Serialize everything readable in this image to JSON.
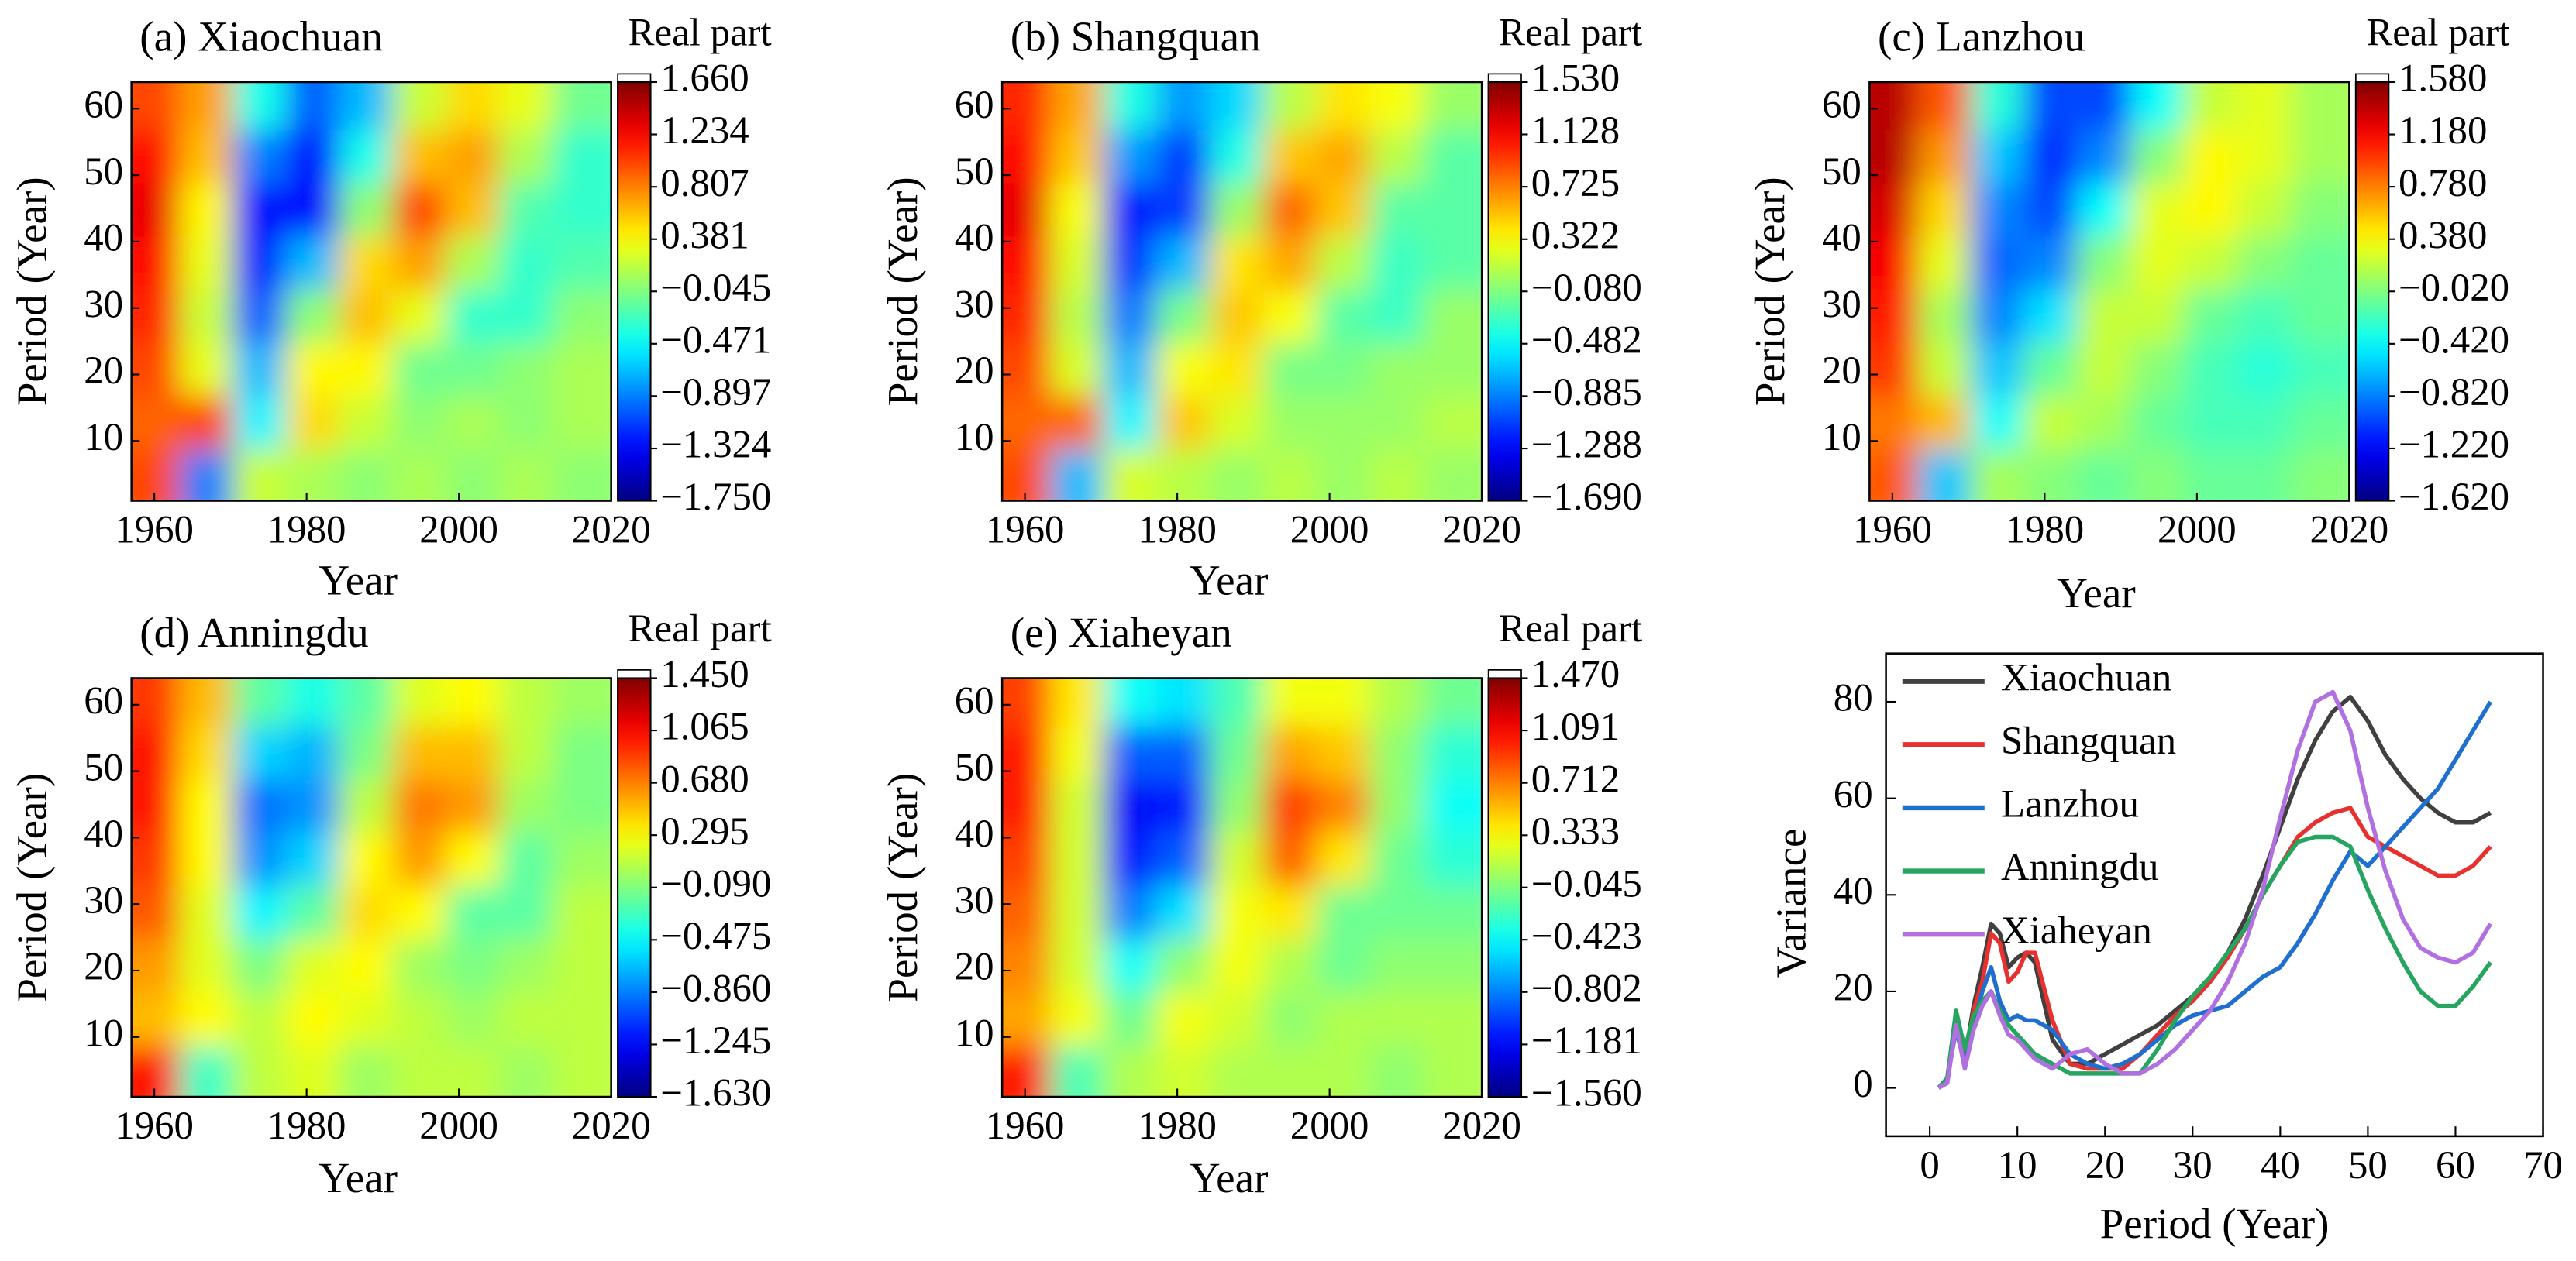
{
  "chart_data": [
    {
      "type": "heatmap",
      "title": "(a) Xiaochuan",
      "colorbar_label": "Real part",
      "xlabel": "Year",
      "ylabel": "Period (Year)",
      "colormap": "jet",
      "x": [
        1960,
        1967,
        1974,
        1981,
        1988,
        1995,
        2002,
        2009,
        2016
      ],
      "y": [
        5,
        13,
        21,
        29,
        37,
        45,
        53,
        61
      ],
      "z": [
        [
          1.0,
          -0.9,
          0.2,
          0.1,
          0.0,
          0.1,
          0.0,
          0.1,
          0.0
        ],
        [
          0.9,
          1.0,
          -0.5,
          0.5,
          0.2,
          0.0,
          0.1,
          0.0,
          0.1
        ],
        [
          1.0,
          0.3,
          -0.7,
          0.4,
          0.4,
          -0.1,
          -0.1,
          0.0,
          0.1
        ],
        [
          1.1,
          0.2,
          -1.0,
          0.0,
          0.6,
          0.3,
          -0.3,
          -0.3,
          0.0
        ],
        [
          1.2,
          0.3,
          -1.2,
          -0.7,
          0.5,
          0.7,
          0.1,
          -0.3,
          -0.2
        ],
        [
          1.3,
          0.4,
          -1.3,
          -1.3,
          0.0,
          1.0,
          0.6,
          -0.2,
          -0.3
        ],
        [
          1.2,
          0.6,
          -0.9,
          -1.3,
          -0.4,
          0.6,
          0.7,
          0.1,
          -0.3
        ],
        [
          1.0,
          0.7,
          -0.4,
          -1.0,
          -0.7,
          0.2,
          0.5,
          0.3,
          -0.1
        ]
      ],
      "xlim": [
        1957,
        2020
      ],
      "ylim": [
        1,
        64
      ],
      "xticks": [
        1960,
        1980,
        2000,
        2020
      ],
      "yticks": [
        10,
        20,
        30,
        40,
        50,
        60
      ],
      "zlim": [
        -1.75,
        1.66
      ],
      "zticks": [
        {
          "value": 1.66,
          "label": "1.660"
        },
        {
          "value": 1.234,
          "label": "1.234"
        },
        {
          "value": 0.807,
          "label": "0.807"
        },
        {
          "value": 0.381,
          "label": "0.381"
        },
        {
          "value": -0.045,
          "label": "−0.045"
        },
        {
          "value": -0.471,
          "label": "−0.471"
        },
        {
          "value": -0.897,
          "label": "−0.897"
        },
        {
          "value": -1.324,
          "label": "−1.324"
        },
        {
          "value": -1.75,
          "label": "−1.750"
        }
      ]
    },
    {
      "type": "heatmap",
      "title": "(b) Shangquan",
      "colorbar_label": "Real part",
      "xlabel": "Year",
      "ylabel": "Period (Year)",
      "colormap": "jet",
      "x": [
        1960,
        1967,
        1974,
        1981,
        1988,
        1995,
        2002,
        2009,
        2016
      ],
      "y": [
        5,
        13,
        21,
        29,
        37,
        45,
        53,
        61
      ],
      "z": [
        [
          0.9,
          -0.7,
          0.2,
          0.1,
          0.0,
          0.1,
          0.0,
          0.1,
          0.0
        ],
        [
          0.8,
          0.8,
          -0.5,
          0.5,
          0.2,
          0.0,
          0.0,
          0.0,
          0.1
        ],
        [
          0.9,
          0.2,
          -0.7,
          0.3,
          0.4,
          -0.1,
          -0.1,
          0.0,
          0.0
        ],
        [
          1.0,
          0.1,
          -0.9,
          -0.1,
          0.5,
          0.3,
          -0.2,
          -0.3,
          0.0
        ],
        [
          1.1,
          0.2,
          -1.1,
          -0.7,
          0.4,
          0.6,
          0.1,
          -0.3,
          -0.2
        ],
        [
          1.2,
          0.3,
          -1.2,
          -1.1,
          0.0,
          0.8,
          0.5,
          -0.2,
          -0.2
        ],
        [
          1.1,
          0.5,
          -0.8,
          -1.1,
          -0.4,
          0.5,
          0.6,
          0.1,
          -0.2
        ],
        [
          1.0,
          0.6,
          -0.4,
          -0.8,
          -0.6,
          0.1,
          0.4,
          0.3,
          0.0
        ]
      ],
      "xlim": [
        1957,
        2020
      ],
      "ylim": [
        1,
        64
      ],
      "xticks": [
        1960,
        1980,
        2000,
        2020
      ],
      "yticks": [
        10,
        20,
        30,
        40,
        50,
        60
      ],
      "zlim": [
        -1.69,
        1.53
      ],
      "zticks": [
        {
          "value": 1.53,
          "label": "1.530"
        },
        {
          "value": 1.128,
          "label": "1.128"
        },
        {
          "value": 0.725,
          "label": "0.725"
        },
        {
          "value": 0.322,
          "label": "0.322"
        },
        {
          "value": -0.08,
          "label": "−0.080"
        },
        {
          "value": -0.482,
          "label": "−0.482"
        },
        {
          "value": -0.885,
          "label": "−0.885"
        },
        {
          "value": -1.288,
          "label": "−1.288"
        },
        {
          "value": -1.69,
          "label": "−1.690"
        }
      ]
    },
    {
      "type": "heatmap",
      "title": "(c) Lanzhou",
      "colorbar_label": "Real part",
      "xlabel": "Year",
      "ylabel": "Period (Year)",
      "colormap": "jet",
      "x": [
        1960,
        1967,
        1974,
        1981,
        1988,
        1995,
        2002,
        2009,
        2016
      ],
      "y": [
        5,
        13,
        21,
        29,
        37,
        45,
        53,
        61
      ],
      "z": [
        [
          0.9,
          -0.6,
          0.1,
          0.0,
          -0.1,
          0.0,
          -0.1,
          -0.1,
          0.0
        ],
        [
          0.8,
          0.6,
          -0.4,
          0.2,
          0.1,
          -0.1,
          -0.2,
          -0.2,
          -0.1
        ],
        [
          1.0,
          0.2,
          -0.6,
          -0.1,
          0.2,
          0.0,
          -0.2,
          -0.3,
          -0.2
        ],
        [
          1.1,
          0.1,
          -0.8,
          -0.5,
          0.2,
          0.2,
          -0.1,
          -0.2,
          -0.1
        ],
        [
          1.2,
          0.3,
          -0.9,
          -0.8,
          0.0,
          0.3,
          0.2,
          0.0,
          -0.1
        ],
        [
          1.3,
          0.5,
          -0.8,
          -1.0,
          -0.4,
          0.3,
          0.4,
          0.2,
          0.0
        ],
        [
          1.4,
          0.7,
          -0.6,
          -1.1,
          -0.8,
          0.0,
          0.4,
          0.3,
          0.1
        ],
        [
          1.4,
          0.9,
          -0.3,
          -1.0,
          -1.0,
          -0.4,
          0.2,
          0.3,
          0.1
        ]
      ],
      "xlim": [
        1957,
        2020
      ],
      "ylim": [
        1,
        64
      ],
      "xticks": [
        1960,
        1980,
        2000,
        2020
      ],
      "yticks": [
        10,
        20,
        30,
        40,
        50,
        60
      ],
      "zlim": [
        -1.62,
        1.58
      ],
      "zticks": [
        {
          "value": 1.58,
          "label": "1.580"
        },
        {
          "value": 1.18,
          "label": "1.180"
        },
        {
          "value": 0.78,
          "label": "0.780"
        },
        {
          "value": 0.38,
          "label": "0.380"
        },
        {
          "value": -0.02,
          "label": "−0.020"
        },
        {
          "value": -0.42,
          "label": "−0.420"
        },
        {
          "value": -0.82,
          "label": "−0.820"
        },
        {
          "value": -1.22,
          "label": "−1.220"
        },
        {
          "value": -1.62,
          "label": "−1.620"
        }
      ]
    },
    {
      "type": "heatmap",
      "title": "(d) Anningdu",
      "colorbar_label": "Real part",
      "xlabel": "Year",
      "ylabel": "Period (Year)",
      "colormap": "jet",
      "x": [
        1960,
        1967,
        1974,
        1981,
        1988,
        1995,
        2002,
        2009,
        2016
      ],
      "y": [
        5,
        13,
        21,
        29,
        37,
        45,
        53,
        61
      ],
      "z": [
        [
          1.0,
          -0.3,
          0.1,
          0.2,
          0.0,
          0.1,
          0.1,
          0.0,
          0.1
        ],
        [
          0.5,
          0.3,
          0.1,
          0.3,
          0.2,
          0.1,
          0.0,
          0.1,
          0.1
        ],
        [
          0.6,
          0.2,
          -0.1,
          0.2,
          0.3,
          0.0,
          -0.1,
          0.0,
          0.1
        ],
        [
          0.8,
          0.2,
          -0.5,
          -0.2,
          0.4,
          0.3,
          -0.2,
          -0.2,
          0.1
        ],
        [
          0.9,
          0.3,
          -0.8,
          -0.6,
          0.3,
          0.6,
          0.3,
          -0.2,
          0.0
        ],
        [
          1.0,
          0.3,
          -0.9,
          -0.8,
          0.1,
          0.7,
          0.6,
          0.0,
          -0.1
        ],
        [
          1.0,
          0.4,
          -0.6,
          -0.7,
          -0.1,
          0.5,
          0.5,
          0.1,
          -0.1
        ],
        [
          0.9,
          0.5,
          -0.2,
          -0.4,
          -0.2,
          0.2,
          0.3,
          0.1,
          0.0
        ]
      ],
      "xlim": [
        1957,
        2020
      ],
      "ylim": [
        1,
        64
      ],
      "xticks": [
        1960,
        1980,
        2000,
        2020
      ],
      "yticks": [
        10,
        20,
        30,
        40,
        50,
        60
      ],
      "zlim": [
        -1.63,
        1.45
      ],
      "zticks": [
        {
          "value": 1.45,
          "label": "1.450"
        },
        {
          "value": 1.065,
          "label": "1.065"
        },
        {
          "value": 0.68,
          "label": "0.680"
        },
        {
          "value": 0.295,
          "label": "0.295"
        },
        {
          "value": -0.09,
          "label": "−0.090"
        },
        {
          "value": -0.475,
          "label": "−0.475"
        },
        {
          "value": -0.86,
          "label": "−0.860"
        },
        {
          "value": -1.245,
          "label": "−1.245"
        },
        {
          "value": -1.63,
          "label": "−1.630"
        }
      ]
    },
    {
      "type": "heatmap",
      "title": "(e) Xiaheyan",
      "colorbar_label": "Real part",
      "xlabel": "Year",
      "ylabel": "Period (Year)",
      "colormap": "jet",
      "x": [
        1960,
        1967,
        1974,
        1981,
        1988,
        1995,
        2002,
        2009,
        2016
      ],
      "y": [
        5,
        13,
        21,
        29,
        37,
        45,
        53,
        61
      ],
      "z": [
        [
          1.0,
          -0.2,
          0.1,
          0.2,
          0.1,
          0.1,
          0.1,
          0.0,
          0.1
        ],
        [
          0.6,
          0.3,
          -0.1,
          0.3,
          0.2,
          0.0,
          0.1,
          0.1,
          0.1
        ],
        [
          0.7,
          0.2,
          -0.4,
          0.0,
          0.3,
          0.1,
          -0.1,
          0.0,
          0.0
        ],
        [
          0.8,
          0.2,
          -0.8,
          -0.5,
          0.3,
          0.4,
          -0.1,
          -0.1,
          -0.1
        ],
        [
          0.9,
          0.2,
          -1.1,
          -0.9,
          0.2,
          0.8,
          0.4,
          -0.1,
          -0.3
        ],
        [
          1.0,
          0.2,
          -1.2,
          -1.1,
          0.0,
          0.9,
          0.7,
          0.0,
          -0.4
        ],
        [
          1.0,
          0.3,
          -0.9,
          -0.9,
          -0.1,
          0.6,
          0.5,
          0.0,
          -0.3
        ],
        [
          0.9,
          0.4,
          -0.4,
          -0.5,
          -0.2,
          0.3,
          0.3,
          0.1,
          -0.1
        ]
      ],
      "xlim": [
        1957,
        2020
      ],
      "ylim": [
        1,
        64
      ],
      "xticks": [
        1960,
        1980,
        2000,
        2020
      ],
      "yticks": [
        10,
        20,
        30,
        40,
        50,
        60
      ],
      "zlim": [
        -1.56,
        1.47
      ],
      "zticks": [
        {
          "value": 1.47,
          "label": "1.470"
        },
        {
          "value": 1.091,
          "label": "1.091"
        },
        {
          "value": 0.712,
          "label": "0.712"
        },
        {
          "value": 0.333,
          "label": "0.333"
        },
        {
          "value": -0.045,
          "label": "−0.045"
        },
        {
          "value": -0.423,
          "label": "−0.423"
        },
        {
          "value": -0.802,
          "label": "−0.802"
        },
        {
          "value": -1.181,
          "label": "−1.181"
        },
        {
          "value": -1.56,
          "label": "−1.560"
        }
      ]
    },
    {
      "type": "line",
      "xlabel": "Period (Year)",
      "ylabel": "Variance",
      "legend": "upper left",
      "x": [
        1,
        2,
        3,
        4,
        5,
        6,
        7,
        8,
        9,
        10,
        11,
        12,
        14,
        16,
        18,
        20,
        22,
        24,
        26,
        28,
        30,
        32,
        34,
        36,
        38,
        40,
        42,
        44,
        46,
        48,
        50,
        52,
        54,
        56,
        58,
        60,
        62,
        64
      ],
      "series": [
        {
          "name": "Xiaochuan",
          "color": "#404040",
          "values": [
            0,
            2,
            14,
            6,
            17,
            25,
            34,
            32,
            25,
            27,
            28,
            26,
            10,
            5,
            5,
            7,
            9,
            11,
            13,
            16,
            19,
            23,
            28,
            35,
            44,
            54,
            64,
            72,
            78,
            81,
            76,
            69,
            64,
            60,
            57,
            55,
            55,
            57
          ]
        },
        {
          "name": "Shangquan",
          "color": "#e8312f",
          "values": [
            0,
            2,
            14,
            5,
            16,
            22,
            32,
            30,
            22,
            24,
            28,
            28,
            14,
            5,
            4,
            4,
            4,
            7,
            11,
            15,
            18,
            22,
            27,
            33,
            40,
            46,
            52,
            55,
            57,
            58,
            52,
            50,
            48,
            46,
            44,
            44,
            46,
            50
          ]
        },
        {
          "name": "Lanzhou",
          "color": "#1f6fcf",
          "values": [
            0,
            2,
            12,
            5,
            13,
            20,
            25,
            18,
            14,
            15,
            14,
            14,
            12,
            7,
            5,
            4,
            5,
            7,
            10,
            13,
            15,
            16,
            17,
            20,
            23,
            25,
            30,
            36,
            43,
            49,
            46,
            50,
            54,
            58,
            62,
            68,
            74,
            80
          ]
        },
        {
          "name": "Anningdu",
          "color": "#25a55f",
          "values": [
            0,
            2,
            16,
            8,
            15,
            18,
            20,
            16,
            13,
            11,
            9,
            7,
            5,
            3,
            3,
            3,
            3,
            3,
            8,
            14,
            19,
            23,
            28,
            33,
            40,
            46,
            51,
            52,
            52,
            50,
            41,
            33,
            26,
            20,
            17,
            17,
            21,
            26
          ]
        },
        {
          "name": "Xiaheyan",
          "color": "#b070e0",
          "values": [
            0,
            1,
            13,
            4,
            12,
            17,
            20,
            15,
            11,
            10,
            8,
            6,
            4,
            7,
            8,
            5,
            3,
            3,
            5,
            8,
            12,
            16,
            22,
            30,
            41,
            56,
            70,
            80,
            82,
            74,
            58,
            45,
            35,
            29,
            27,
            26,
            28,
            34
          ]
        }
      ],
      "xlim": [
        -5,
        70
      ],
      "ylim": [
        -10,
        90
      ],
      "xticks": [
        0,
        10,
        20,
        30,
        40,
        50,
        60,
        70
      ],
      "yticks": [
        0,
        20,
        40,
        60,
        80
      ]
    }
  ]
}
